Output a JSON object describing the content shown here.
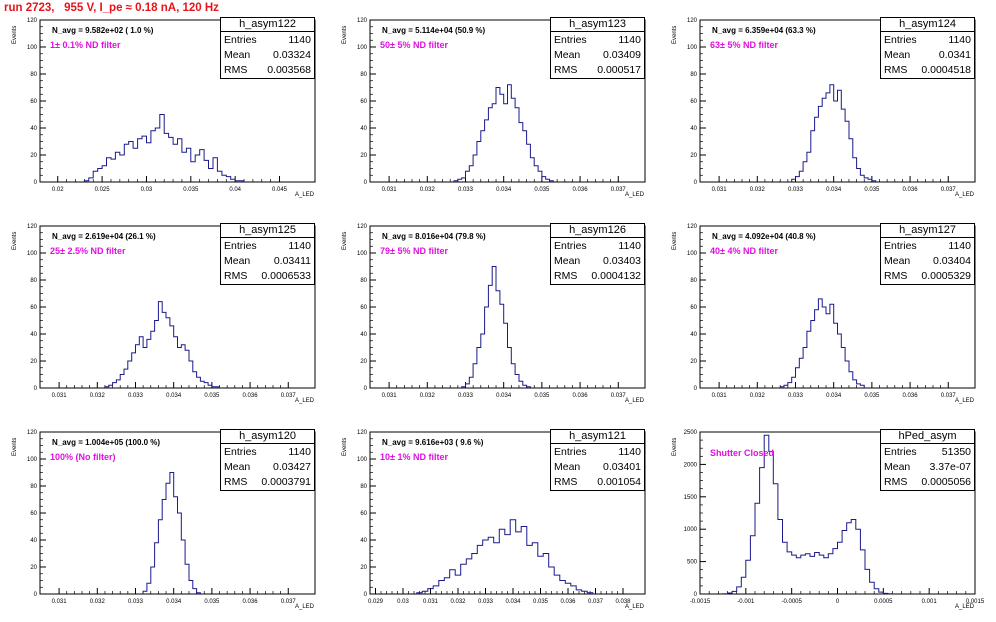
{
  "page": {
    "title": "run 2723,   955 V, I_pe ≈ 0.18 nA, 120 Hz"
  },
  "stats_labels": {
    "entries": "Entries",
    "mean": "Mean",
    "rms": "RMS"
  },
  "colors": {
    "hist_line": "#1a1a8c",
    "filter_text": "#e010e0",
    "title_text": "#e8141a"
  },
  "chart_data": [
    {
      "type": "histogram",
      "name": "h_asym122",
      "navg": "N_avg = 9.582e+02 ( 1.0 %)",
      "filter": "1± 0.1% ND filter",
      "entries": "1140",
      "mean": "0.03324",
      "rms": "0.003568",
      "ylabel": "Events",
      "xlabel": "A_LED",
      "xlim": [
        0.018,
        0.049
      ],
      "ylim": [
        0,
        120
      ],
      "xticks": [
        "0.02",
        "0.025",
        "0.03",
        "0.035",
        "0.04",
        "0.045"
      ],
      "xtick_vals": [
        0.02,
        0.025,
        0.03,
        0.035,
        0.04,
        0.045
      ],
      "yticks": [
        0,
        20,
        40,
        60,
        80,
        100,
        120
      ],
      "bin_start": 0.023,
      "bin_width": 0.0005,
      "values": [
        1,
        3,
        8,
        10,
        12,
        18,
        17,
        22,
        20,
        28,
        30,
        25,
        32,
        34,
        29,
        38,
        40,
        50,
        36,
        33,
        28,
        32,
        22,
        25,
        15,
        20,
        24,
        16,
        10,
        18,
        8,
        5,
        4,
        2,
        1,
        1
      ]
    },
    {
      "type": "histogram",
      "name": "h_asym123",
      "navg": "N_avg = 5.114e+04 (50.9 %)",
      "filter": "50± 5% ND filter",
      "entries": "1140",
      "mean": "0.03409",
      "rms": "0.000517",
      "ylabel": "Events",
      "xlabel": "A_LED",
      "xlim": [
        0.0305,
        0.0377
      ],
      "ylim": [
        0,
        120
      ],
      "xticks": [
        "0.031",
        "0.032",
        "0.033",
        "0.034",
        "0.035",
        "0.036",
        "0.037"
      ],
      "xtick_vals": [
        0.031,
        0.032,
        0.033,
        0.034,
        0.035,
        0.036,
        0.037
      ],
      "yticks": [
        0,
        20,
        40,
        60,
        80,
        100,
        120
      ],
      "bin_start": 0.0327,
      "bin_width": 0.0001,
      "values": [
        1,
        2,
        3,
        8,
        12,
        20,
        30,
        38,
        46,
        55,
        58,
        70,
        65,
        58,
        72,
        62,
        55,
        44,
        38,
        28,
        18,
        12,
        8,
        4,
        2,
        1
      ]
    },
    {
      "type": "histogram",
      "name": "h_asym124",
      "navg": "N_avg = 6.359e+04 (63.3 %)",
      "filter": "63± 5% ND filter",
      "entries": "1140",
      "mean": "0.0341",
      "rms": "0.0004518",
      "ylabel": "Events",
      "xlabel": "A_LED",
      "xlim": [
        0.0305,
        0.0377
      ],
      "ylim": [
        0,
        120
      ],
      "xticks": [
        "0.031",
        "0.032",
        "0.033",
        "0.034",
        "0.035",
        "0.036",
        "0.037"
      ],
      "xtick_vals": [
        0.031,
        0.032,
        0.033,
        0.034,
        0.035,
        0.036,
        0.037
      ],
      "yticks": [
        0,
        20,
        40,
        60,
        80,
        100,
        120
      ],
      "bin_start": 0.0329,
      "bin_width": 0.0001,
      "values": [
        2,
        4,
        8,
        15,
        22,
        38,
        48,
        56,
        62,
        66,
        72,
        60,
        68,
        54,
        45,
        32,
        18,
        10,
        5,
        3,
        2,
        1
      ]
    },
    {
      "type": "histogram",
      "name": "h_asym125",
      "navg": "N_avg = 2.619e+04 (26.1 %)",
      "filter": "25± 2.5% ND filter",
      "entries": "1140",
      "mean": "0.03411",
      "rms": "0.0006533",
      "ylabel": "Events",
      "xlabel": "A_LED",
      "xlim": [
        0.0305,
        0.0377
      ],
      "ylim": [
        0,
        120
      ],
      "xticks": [
        "0.031",
        "0.032",
        "0.033",
        "0.034",
        "0.035",
        "0.036",
        "0.037"
      ],
      "xtick_vals": [
        0.031,
        0.032,
        0.033,
        0.034,
        0.035,
        0.036,
        0.037
      ],
      "yticks": [
        0,
        20,
        40,
        60,
        80,
        100,
        120
      ],
      "bin_start": 0.0322,
      "bin_width": 0.0001,
      "values": [
        1,
        2,
        4,
        6,
        10,
        14,
        20,
        26,
        32,
        38,
        30,
        36,
        42,
        50,
        64,
        56,
        52,
        46,
        38,
        30,
        32,
        28,
        20,
        12,
        8,
        5,
        4,
        2,
        1,
        1
      ]
    },
    {
      "type": "histogram",
      "name": "h_asym126",
      "navg": "N_avg = 8.016e+04 (79.8 %)",
      "filter": "79± 5% ND filter",
      "entries": "1140",
      "mean": "0.03403",
      "rms": "0.0004132",
      "ylabel": "Events",
      "xlabel": "A_LED",
      "xlim": [
        0.0305,
        0.0377
      ],
      "ylim": [
        0,
        120
      ],
      "xticks": [
        "0.031",
        "0.032",
        "0.033",
        "0.034",
        "0.035",
        "0.036",
        "0.037"
      ],
      "xtick_vals": [
        0.031,
        0.032,
        0.033,
        0.034,
        0.035,
        0.036,
        0.037
      ],
      "yticks": [
        0,
        20,
        40,
        60,
        80,
        100,
        120
      ],
      "bin_start": 0.0329,
      "bin_width": 0.0001,
      "values": [
        1,
        3,
        8,
        18,
        30,
        40,
        60,
        76,
        90,
        72,
        62,
        48,
        30,
        18,
        10,
        5,
        2,
        1
      ]
    },
    {
      "type": "histogram",
      "name": "h_asym127",
      "navg": "N_avg = 4.092e+04 (40.8 %)",
      "filter": "40± 4% ND filter",
      "entries": "1140",
      "mean": "0.03404",
      "rms": "0.0005329",
      "ylabel": "Events",
      "xlabel": "A_LED",
      "xlim": [
        0.0305,
        0.0377
      ],
      "ylim": [
        0,
        120
      ],
      "xticks": [
        "0.031",
        "0.032",
        "0.033",
        "0.034",
        "0.035",
        "0.036",
        "0.037"
      ],
      "xtick_vals": [
        0.031,
        0.032,
        0.033,
        0.034,
        0.035,
        0.036,
        0.037
      ],
      "yticks": [
        0,
        20,
        40,
        60,
        80,
        100,
        120
      ],
      "bin_start": 0.0326,
      "bin_width": 0.0001,
      "values": [
        1,
        2,
        4,
        8,
        15,
        22,
        30,
        42,
        50,
        58,
        66,
        60,
        55,
        62,
        48,
        40,
        30,
        20,
        12,
        6,
        3,
        2
      ]
    },
    {
      "type": "histogram",
      "name": "h_asym120",
      "navg": "N_avg = 1.004e+05 (100.0 %)",
      "filter": "100% (No filter)",
      "entries": "1140",
      "mean": "0.03427",
      "rms": "0.0003791",
      "ylabel": "Events",
      "xlabel": "A_LED",
      "xlim": [
        0.0305,
        0.0377
      ],
      "ylim": [
        0,
        120
      ],
      "xticks": [
        "0.031",
        "0.032",
        "0.033",
        "0.034",
        "0.035",
        "0.036",
        "0.037"
      ],
      "xtick_vals": [
        0.031,
        0.032,
        0.033,
        0.034,
        0.035,
        0.036,
        0.037
      ],
      "yticks": [
        0,
        20,
        40,
        60,
        80,
        100,
        120
      ],
      "bin_start": 0.0332,
      "bin_width": 0.0001,
      "values": [
        2,
        8,
        20,
        38,
        55,
        70,
        82,
        90,
        72,
        60,
        40,
        22,
        10,
        4,
        1
      ]
    },
    {
      "type": "histogram",
      "name": "h_asym121",
      "navg": "N_avg = 9.616e+03 ( 9.6 %)",
      "filter": "10± 1% ND filter",
      "entries": "1140",
      "mean": "0.03401",
      "rms": "0.001054",
      "ylabel": "Events",
      "xlabel": "A_LED",
      "xlim": [
        0.0288,
        0.0388
      ],
      "ylim": [
        0,
        120
      ],
      "xticks": [
        "0.029",
        "0.03",
        "0.031",
        "0.032",
        "0.033",
        "0.034",
        "0.035",
        "0.036",
        "0.037",
        "0.038"
      ],
      "xtick_vals": [
        0.029,
        0.03,
        0.031,
        0.032,
        0.033,
        0.034,
        0.035,
        0.036,
        0.037,
        0.038
      ],
      "yticks": [
        0,
        20,
        40,
        60,
        80,
        100,
        120
      ],
      "bin_start": 0.0305,
      "bin_width": 0.0002,
      "values": [
        1,
        2,
        4,
        6,
        10,
        12,
        18,
        14,
        22,
        26,
        30,
        36,
        40,
        42,
        38,
        48,
        44,
        55,
        46,
        50,
        36,
        38,
        28,
        30,
        20,
        14,
        10,
        8,
        6,
        3,
        2,
        1
      ]
    },
    {
      "type": "histogram",
      "name": "hPed_asym",
      "navg": "",
      "filter": "Shutter Closed",
      "entries": "51350",
      "mean": "3.37e-07",
      "rms": "0.0005056",
      "ylabel": "Events",
      "xlabel": "A_LED",
      "xlim": [
        -0.0015,
        0.0015
      ],
      "ylim": [
        0,
        2500
      ],
      "xticks": [
        "-0.0015",
        "-0.001",
        "-0.0005",
        "0",
        "0.0005",
        "0.001",
        "0.0015"
      ],
      "xtick_vals": [
        -0.0015,
        -0.001,
        -0.0005,
        0,
        0.0005,
        0.001,
        0.0015
      ],
      "yticks": [
        0,
        500,
        1000,
        1500,
        2000,
        2500
      ],
      "bin_start": -0.00125,
      "bin_width": 5e-05,
      "values": [
        5,
        15,
        40,
        110,
        260,
        520,
        900,
        1400,
        1950,
        2450,
        2200,
        1700,
        1150,
        800,
        650,
        600,
        560,
        600,
        620,
        580,
        640,
        600,
        560,
        620,
        700,
        800,
        980,
        1100,
        1150,
        1000,
        680,
        380,
        180,
        80,
        30,
        10,
        3
      ]
    }
  ]
}
